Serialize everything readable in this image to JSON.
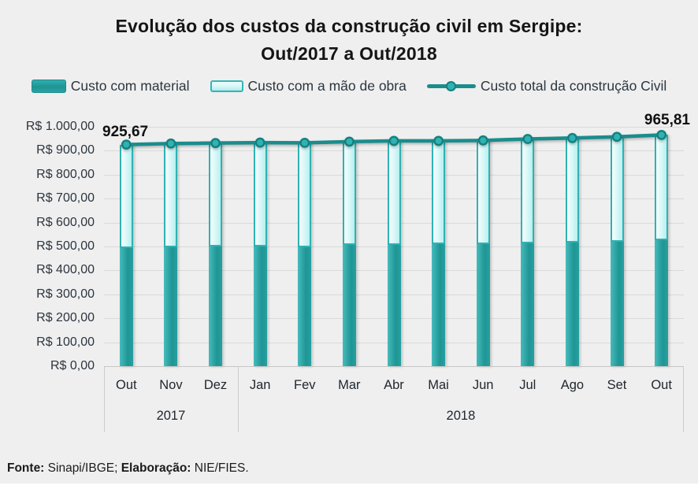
{
  "title": {
    "line1": "Evolução dos custos da construção civil em Sergipe:",
    "line2": "Out/2017 a Out/2018"
  },
  "legend": [
    {
      "label": "Custo com material",
      "swatch": "dark-teal-bar"
    },
    {
      "label": "Custo com a mão de obra",
      "swatch": "light-cyan-bar"
    },
    {
      "label": "Custo total da construção Civil",
      "swatch": "teal-line-marker"
    }
  ],
  "chart_data": {
    "type": "bar",
    "subtype": "stacked-bars-with-total-line",
    "title": "Evolução dos custos da construção civil em Sergipe: Out/2017 a Out/2018",
    "categories": [
      "Out",
      "Nov",
      "Dez",
      "Jan",
      "Fev",
      "Mar",
      "Abr",
      "Mai",
      "Jun",
      "Jul",
      "Ago",
      "Set",
      "Out"
    ],
    "year_groups": [
      {
        "label": "2017",
        "count": 3
      },
      {
        "label": "2018",
        "count": 10
      }
    ],
    "series": [
      {
        "name": "Custo com material",
        "type": "bar",
        "stack": true,
        "values": [
          492,
          496,
          499,
          500,
          498,
          505,
          508,
          509,
          511,
          512,
          517,
          520,
          525
        ]
      },
      {
        "name": "Custo com a mão de obra",
        "type": "bar",
        "stack": true,
        "values": [
          433.67,
          434,
          433,
          434,
          435,
          433,
          433,
          432,
          432,
          437,
          436,
          438,
          440.81
        ]
      },
      {
        "name": "Custo total da construção Civil",
        "type": "line",
        "values": [
          925.67,
          930,
          932,
          934,
          933,
          938,
          941,
          941,
          943,
          949,
          953,
          958,
          965.81
        ]
      }
    ],
    "point_labels": {
      "first": "925,67",
      "last": "965,81"
    },
    "ylim": [
      0,
      1000
    ],
    "ytick_labels": [
      "R$ 1.000,00",
      "R$ 900,00",
      "R$ 800,00",
      "R$ 700,00",
      "R$ 600,00",
      "R$ 500,00",
      "R$ 400,00",
      "R$ 300,00",
      "R$ 200,00",
      "R$ 100,00",
      "R$ 0,00"
    ],
    "xlabel": "",
    "ylabel": "",
    "grid": true,
    "legend_position": "top"
  },
  "footer": {
    "source_label": "Fonte:",
    "source_value": " Sinapi/IBGE; ",
    "elaboration_label": "Elaboração:",
    "elaboration_value": " NIE/FIES."
  },
  "colors": {
    "background": "#efefef",
    "bar_material": "#1f9595",
    "bar_material_highlight": "#46bcbc",
    "bar_labor_fill": "#e9fbfb",
    "bar_labor_border": "#2fb2b2",
    "total_line": "#1b8c8c",
    "marker_fill": "#2eb3b3",
    "marker_stroke": "#157f7f",
    "grid_line": "#d9d9d9",
    "axis_line": "#c6c6c6",
    "text": "#2c353e",
    "title_text": "#151515"
  }
}
